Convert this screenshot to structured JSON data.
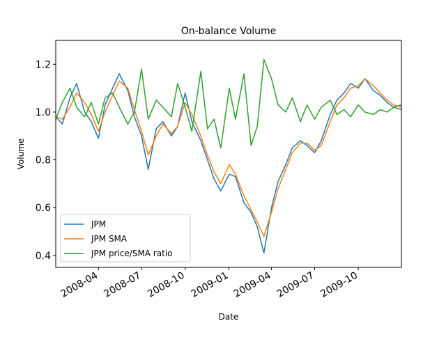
{
  "chart_data": {
    "type": "line",
    "title": "On-balance Volume",
    "xlabel": "Date",
    "ylabel": "Volume",
    "x_range": [
      "2008-01-02",
      "2009-12-31"
    ],
    "ylim": [
      0.35,
      1.3
    ],
    "x_ticks": [
      {
        "date": "2008-04-01",
        "label": "2008-04"
      },
      {
        "date": "2008-07-01",
        "label": "2008-07"
      },
      {
        "date": "2008-10-01",
        "label": "2008-10"
      },
      {
        "date": "2009-01-01",
        "label": "2009-01"
      },
      {
        "date": "2009-04-01",
        "label": "2009-04"
      },
      {
        "date": "2009-07-01",
        "label": "2009-07"
      },
      {
        "date": "2009-10-01",
        "label": "2009-10"
      }
    ],
    "y_ticks": [
      0.4,
      0.6,
      0.8,
      1.0,
      1.2
    ],
    "y_tick_labels": [
      "0.4",
      "0.6",
      "0.8",
      "1.0",
      "1.2"
    ],
    "grid": false,
    "legend_position": "lower-left",
    "series": [
      {
        "name": "JPM",
        "color": "#1f77b4",
        "points": [
          [
            "2008-01-02",
            0.98
          ],
          [
            "2008-01-16",
            0.95
          ],
          [
            "2008-02-01",
            1.06
          ],
          [
            "2008-02-15",
            1.12
          ],
          [
            "2008-03-03",
            1.0
          ],
          [
            "2008-03-17",
            0.96
          ],
          [
            "2008-04-01",
            0.89
          ],
          [
            "2008-04-15",
            1.03
          ],
          [
            "2008-05-01",
            1.1
          ],
          [
            "2008-05-15",
            1.16
          ],
          [
            "2008-06-02",
            1.09
          ],
          [
            "2008-06-16",
            0.98
          ],
          [
            "2008-07-01",
            0.9
          ],
          [
            "2008-07-15",
            0.76
          ],
          [
            "2008-08-01",
            0.93
          ],
          [
            "2008-08-15",
            0.96
          ],
          [
            "2008-09-02",
            0.9
          ],
          [
            "2008-09-15",
            0.94
          ],
          [
            "2008-10-01",
            1.08
          ],
          [
            "2008-10-15",
            0.96
          ],
          [
            "2008-11-03",
            0.88
          ],
          [
            "2008-11-17",
            0.8
          ],
          [
            "2008-12-01",
            0.72
          ],
          [
            "2008-12-15",
            0.67
          ],
          [
            "2009-01-02",
            0.74
          ],
          [
            "2009-01-15",
            0.73
          ],
          [
            "2009-02-02",
            0.62
          ],
          [
            "2009-02-17",
            0.58
          ],
          [
            "2009-03-02",
            0.52
          ],
          [
            "2009-03-16",
            0.41
          ],
          [
            "2009-04-01",
            0.6
          ],
          [
            "2009-04-15",
            0.71
          ],
          [
            "2009-05-01",
            0.78
          ],
          [
            "2009-05-15",
            0.85
          ],
          [
            "2009-06-01",
            0.88
          ],
          [
            "2009-06-15",
            0.86
          ],
          [
            "2009-07-01",
            0.83
          ],
          [
            "2009-07-15",
            0.88
          ],
          [
            "2009-08-03",
            0.99
          ],
          [
            "2009-08-17",
            1.05
          ],
          [
            "2009-09-01",
            1.08
          ],
          [
            "2009-09-15",
            1.12
          ],
          [
            "2009-10-01",
            1.1
          ],
          [
            "2009-10-15",
            1.14
          ],
          [
            "2009-11-02",
            1.09
          ],
          [
            "2009-11-16",
            1.07
          ],
          [
            "2009-12-01",
            1.04
          ],
          [
            "2009-12-15",
            1.02
          ],
          [
            "2009-12-31",
            1.03
          ]
        ]
      },
      {
        "name": "JPM SMA",
        "color": "#ff7f0e",
        "points": [
          [
            "2008-01-02",
            0.98
          ],
          [
            "2008-01-16",
            0.97
          ],
          [
            "2008-02-01",
            1.02
          ],
          [
            "2008-02-15",
            1.08
          ],
          [
            "2008-03-03",
            1.04
          ],
          [
            "2008-03-17",
            0.99
          ],
          [
            "2008-04-01",
            0.92
          ],
          [
            "2008-04-15",
            1.0
          ],
          [
            "2008-05-01",
            1.07
          ],
          [
            "2008-05-15",
            1.13
          ],
          [
            "2008-06-02",
            1.1
          ],
          [
            "2008-06-16",
            1.01
          ],
          [
            "2008-07-01",
            0.92
          ],
          [
            "2008-07-15",
            0.82
          ],
          [
            "2008-08-01",
            0.9
          ],
          [
            "2008-08-15",
            0.95
          ],
          [
            "2008-09-02",
            0.91
          ],
          [
            "2008-09-15",
            0.94
          ],
          [
            "2008-10-01",
            1.04
          ],
          [
            "2008-10-15",
            0.99
          ],
          [
            "2008-11-03",
            0.9
          ],
          [
            "2008-11-17",
            0.82
          ],
          [
            "2008-12-01",
            0.75
          ],
          [
            "2008-12-15",
            0.7
          ],
          [
            "2009-01-02",
            0.78
          ],
          [
            "2009-01-15",
            0.74
          ],
          [
            "2009-02-02",
            0.65
          ],
          [
            "2009-02-17",
            0.59
          ],
          [
            "2009-03-02",
            0.54
          ],
          [
            "2009-03-16",
            0.48
          ],
          [
            "2009-04-01",
            0.58
          ],
          [
            "2009-04-15",
            0.68
          ],
          [
            "2009-05-01",
            0.76
          ],
          [
            "2009-05-15",
            0.83
          ],
          [
            "2009-06-01",
            0.87
          ],
          [
            "2009-06-15",
            0.87
          ],
          [
            "2009-07-01",
            0.84
          ],
          [
            "2009-07-15",
            0.86
          ],
          [
            "2009-08-03",
            0.96
          ],
          [
            "2009-08-17",
            1.03
          ],
          [
            "2009-09-01",
            1.06
          ],
          [
            "2009-09-15",
            1.1
          ],
          [
            "2009-10-01",
            1.11
          ],
          [
            "2009-10-15",
            1.14
          ],
          [
            "2009-11-02",
            1.11
          ],
          [
            "2009-11-16",
            1.08
          ],
          [
            "2009-12-01",
            1.05
          ],
          [
            "2009-12-15",
            1.03
          ],
          [
            "2009-12-31",
            1.02
          ]
        ]
      },
      {
        "name": "JPM price/SMA ratio",
        "color": "#2ca02c",
        "points": [
          [
            "2008-01-02",
            0.97
          ],
          [
            "2008-01-16",
            1.04
          ],
          [
            "2008-02-01",
            1.1
          ],
          [
            "2008-02-15",
            1.02
          ],
          [
            "2008-03-03",
            0.98
          ],
          [
            "2008-03-17",
            1.04
          ],
          [
            "2008-04-01",
            0.95
          ],
          [
            "2008-04-15",
            1.06
          ],
          [
            "2008-05-01",
            1.08
          ],
          [
            "2008-05-15",
            1.02
          ],
          [
            "2008-06-02",
            0.95
          ],
          [
            "2008-06-16",
            1.0
          ],
          [
            "2008-07-01",
            1.18
          ],
          [
            "2008-07-15",
            0.97
          ],
          [
            "2008-08-01",
            1.05
          ],
          [
            "2008-08-15",
            1.02
          ],
          [
            "2008-09-02",
            0.98
          ],
          [
            "2008-09-15",
            1.12
          ],
          [
            "2008-10-01",
            1.02
          ],
          [
            "2008-10-15",
            0.92
          ],
          [
            "2008-11-03",
            1.17
          ],
          [
            "2008-11-17",
            0.93
          ],
          [
            "2008-12-01",
            0.97
          ],
          [
            "2008-12-15",
            0.85
          ],
          [
            "2009-01-02",
            1.1
          ],
          [
            "2009-01-15",
            0.97
          ],
          [
            "2009-02-02",
            1.16
          ],
          [
            "2009-02-17",
            0.86
          ],
          [
            "2009-03-02",
            0.94
          ],
          [
            "2009-03-16",
            1.22
          ],
          [
            "2009-04-01",
            1.14
          ],
          [
            "2009-04-15",
            1.03
          ],
          [
            "2009-05-01",
            1.0
          ],
          [
            "2009-05-15",
            1.06
          ],
          [
            "2009-06-01",
            0.96
          ],
          [
            "2009-06-15",
            1.03
          ],
          [
            "2009-07-01",
            0.97
          ],
          [
            "2009-07-15",
            1.02
          ],
          [
            "2009-08-03",
            1.05
          ],
          [
            "2009-08-17",
            0.99
          ],
          [
            "2009-09-01",
            1.01
          ],
          [
            "2009-09-15",
            0.98
          ],
          [
            "2009-10-01",
            1.03
          ],
          [
            "2009-10-15",
            1.0
          ],
          [
            "2009-11-02",
            0.99
          ],
          [
            "2009-11-16",
            1.01
          ],
          [
            "2009-12-01",
            1.0
          ],
          [
            "2009-12-15",
            1.02
          ],
          [
            "2009-12-31",
            1.01
          ]
        ]
      }
    ]
  }
}
